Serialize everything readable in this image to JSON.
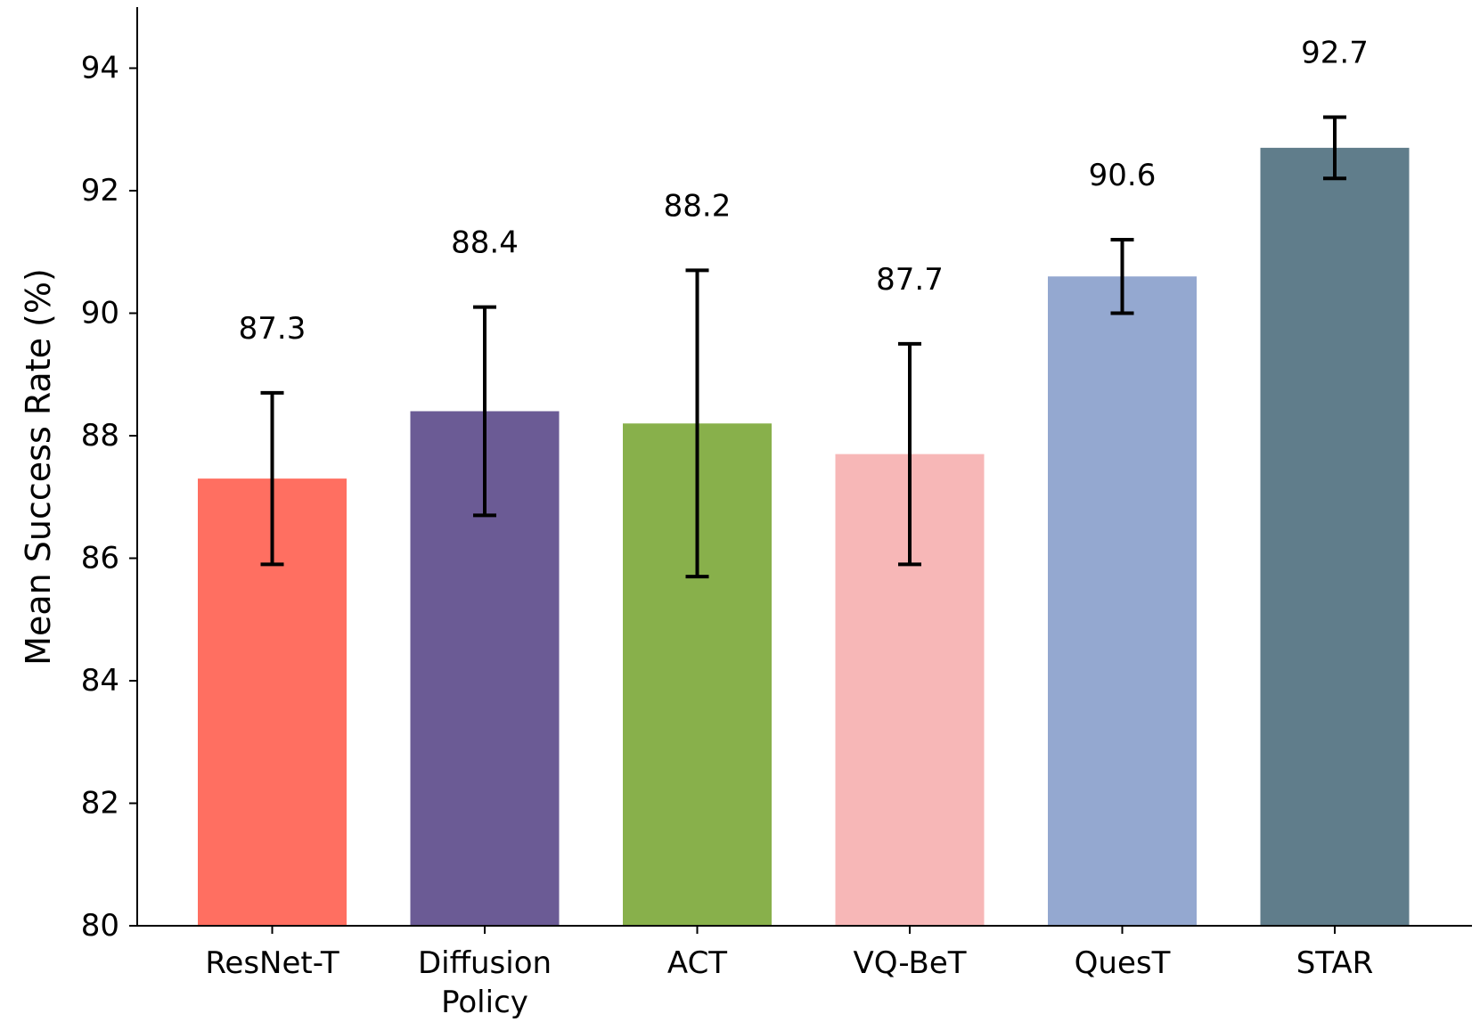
{
  "chart_data": {
    "type": "bar",
    "title": "",
    "xlabel": "",
    "ylabel": "Mean Success Rate (%)",
    "ylim": [
      80,
      95
    ],
    "yticks": [
      80,
      82,
      84,
      86,
      88,
      90,
      92,
      94
    ],
    "categories": [
      "ResNet-T",
      "Diffusion Policy",
      "ACT",
      "VQ-BeT",
      "QuesT",
      "STAR"
    ],
    "category_lines": [
      [
        "ResNet-T"
      ],
      [
        "Diffusion",
        "Policy"
      ],
      [
        "ACT"
      ],
      [
        "VQ-BeT"
      ],
      [
        "QuesT"
      ],
      [
        "STAR"
      ]
    ],
    "values": [
      87.3,
      88.4,
      88.2,
      87.7,
      90.6,
      92.7
    ],
    "value_labels": [
      "87.3",
      "88.4",
      "88.2",
      "87.7",
      "90.6",
      "92.7"
    ],
    "errors": [
      1.4,
      1.7,
      2.5,
      1.8,
      0.6,
      0.5
    ],
    "colors": [
      "#ff6f61",
      "#6b5b95",
      "#88b04b",
      "#f7b7b7",
      "#94a8d0",
      "#607d8b"
    ],
    "grid": false,
    "legend": "none"
  }
}
